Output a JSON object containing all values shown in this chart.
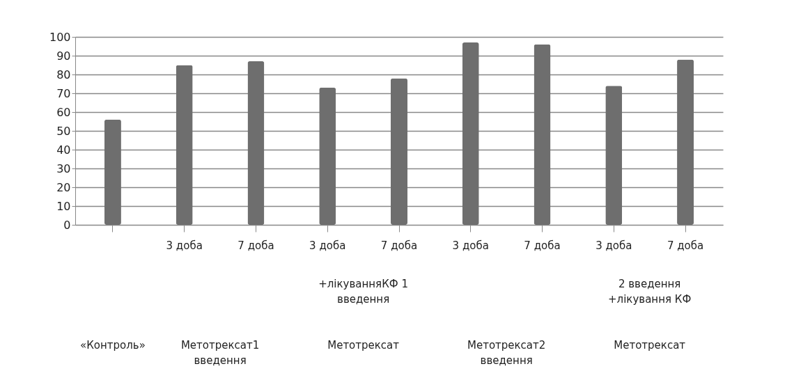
{
  "chart_data": {
    "type": "bar",
    "categories": [
      null,
      "3 доба",
      "7 доба",
      "3 доба",
      "7 доба",
      "3 доба",
      "7 доба",
      "3 доба",
      "7 доба"
    ],
    "values": [
      56,
      85,
      87,
      73,
      78,
      97,
      96,
      74,
      88
    ],
    "color": "#6e6e6e",
    "ylim": [
      0,
      100
    ],
    "yticks": [
      0,
      10,
      20,
      30,
      40,
      50,
      60,
      70,
      80,
      90,
      100
    ],
    "grid": "y",
    "annotations": [
      "«Контроль»",
      "Метотрексат1 введення",
      "+лікуванняКФ 1 введення",
      "Метотрексат",
      "Метотрексат2 введення",
      "2 введення +лікування КФ",
      "Метотрексат"
    ]
  }
}
